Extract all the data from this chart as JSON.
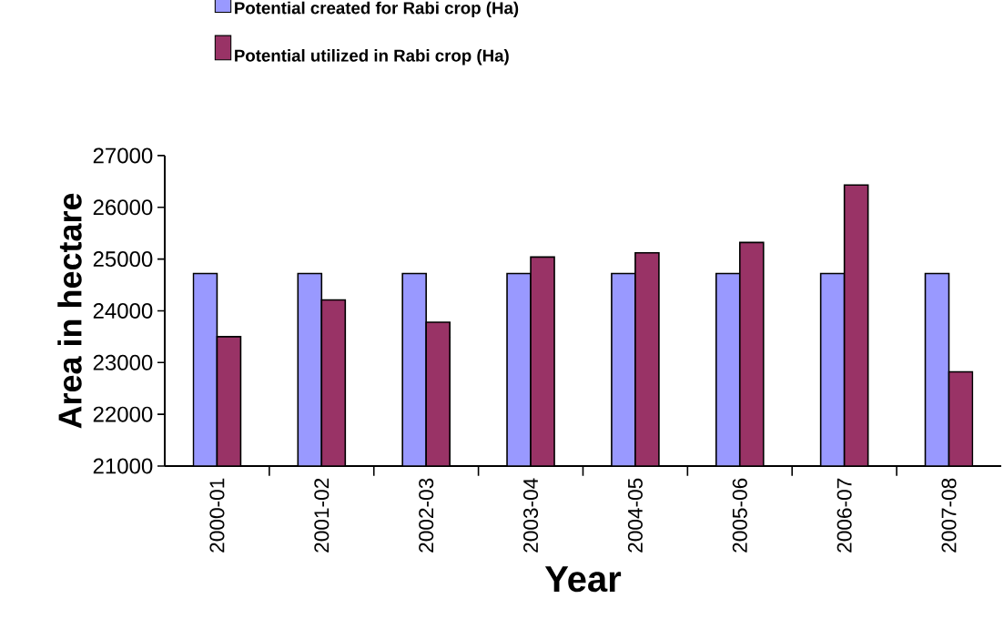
{
  "chart_data": {
    "type": "bar",
    "xlabel": "Year",
    "ylabel": "Area in hectare",
    "categories": [
      "2000-01",
      "2001-02",
      "2002-03",
      "2003-04",
      "2004-05",
      "2005-06",
      "2006-07",
      "2007-08"
    ],
    "series": [
      {
        "name": "Potential created for Rabi crop (Ha)",
        "color": "#9999ff",
        "values": [
          24720,
          24720,
          24720,
          24720,
          24720,
          24720,
          24720,
          24720
        ]
      },
      {
        "name": "Potential utilized in Rabi crop (Ha)",
        "color": "#993366",
        "values": [
          23500,
          24210,
          23780,
          25040,
          25120,
          25320,
          26430,
          22820
        ]
      }
    ],
    "ylim": [
      21000,
      27000
    ],
    "yticks": [
      21000,
      22000,
      23000,
      24000,
      25000,
      26000,
      27000
    ],
    "grid": false,
    "legend": "top"
  }
}
